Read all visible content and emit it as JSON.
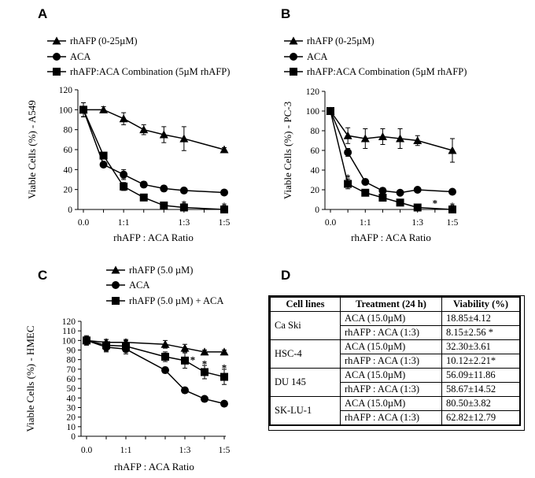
{
  "panels": {
    "A": "A",
    "B": "B",
    "C": "C",
    "D": "D"
  },
  "chart_data": [
    {
      "id": "A",
      "type": "line",
      "ylabel": "Viable Cells (%) - A549",
      "xlabel": "rhAFP : ACA Ratio",
      "ylim": [
        0,
        120
      ],
      "yticks": [
        0,
        20,
        40,
        60,
        80,
        100,
        120
      ],
      "x_positions": [
        0,
        1,
        2,
        3,
        4,
        5,
        6,
        7
      ],
      "xtick_labels": [
        {
          "x": 0,
          "label": "0.0"
        },
        {
          "x": 2,
          "label": "1:1"
        },
        {
          "x": 5,
          "label": "1:3"
        },
        {
          "x": 7,
          "label": "1:5"
        }
      ],
      "series": [
        {
          "name": "rhAFP (0-25µM)",
          "marker": "triangle",
          "values": [
            100,
            100,
            91,
            80,
            75,
            71,
            60
          ],
          "x": [
            0,
            1,
            2,
            3,
            4,
            5,
            7
          ],
          "err": [
            7,
            3,
            6,
            5,
            8,
            12,
            2
          ]
        },
        {
          "name": "ACA",
          "marker": "circle",
          "values": [
            100,
            45,
            35,
            25,
            21,
            19,
            17
          ],
          "x": [
            0,
            1,
            2,
            3,
            4,
            5,
            7
          ],
          "err": [
            7,
            2,
            5,
            3,
            3,
            2,
            2
          ]
        },
        {
          "name": "rhAFP:ACA Combination (5µM rhAFP)",
          "marker": "square",
          "values": [
            100,
            54,
            23,
            12,
            4,
            2,
            0
          ],
          "x": [
            0,
            1,
            2,
            3,
            4,
            5,
            7
          ],
          "err": [
            7,
            3,
            4,
            2,
            2,
            2,
            1
          ]
        }
      ],
      "stars": [
        {
          "x": 2,
          "y": 31
        },
        {
          "x": 5,
          "y": 6
        },
        {
          "x": 7,
          "y": 4
        }
      ]
    },
    {
      "id": "B",
      "type": "line",
      "ylabel": "Viable Cells (%) - PC-3",
      "xlabel": "rhAFP : ACA Ratio",
      "ylim": [
        0,
        120
      ],
      "yticks": [
        0,
        20,
        40,
        60,
        80,
        100,
        120
      ],
      "x_positions": [
        0,
        1,
        2,
        3,
        4,
        5,
        6,
        7
      ],
      "xtick_labels": [
        {
          "x": 0,
          "label": "0.0"
        },
        {
          "x": 2,
          "label": "1:1"
        },
        {
          "x": 5,
          "label": "1:3"
        },
        {
          "x": 7,
          "label": "1:5"
        }
      ],
      "series": [
        {
          "name": "rhAFP (0-25µM)",
          "marker": "triangle",
          "values": [
            100,
            75,
            72,
            74,
            72,
            70,
            60
          ],
          "x": [
            0,
            1,
            2,
            3,
            4,
            5,
            7
          ],
          "err": [
            3,
            8,
            10,
            8,
            10,
            5,
            12
          ]
        },
        {
          "name": "ACA",
          "marker": "circle",
          "values": [
            100,
            58,
            28,
            19,
            17,
            20,
            18
          ],
          "x": [
            0,
            1,
            2,
            3,
            4,
            5,
            7
          ],
          "err": [
            3,
            4,
            3,
            3,
            2,
            2,
            2
          ]
        },
        {
          "name": "rhAFP:ACA Combination (5µM rhAFP)",
          "marker": "square",
          "values": [
            100,
            26,
            17,
            12,
            7,
            2,
            0
          ],
          "x": [
            0,
            1,
            2,
            3,
            4,
            5,
            7
          ],
          "err": [
            3,
            5,
            2,
            3,
            2,
            2,
            1
          ]
        }
      ],
      "stars": [
        {
          "x": 1,
          "y": 33
        },
        {
          "x": 6,
          "y": 7
        },
        {
          "x": 7,
          "y": 4
        }
      ]
    },
    {
      "id": "C",
      "type": "line",
      "ylabel": "Viable Cells (%) - HMEC",
      "xlabel": "rhAFP : ACA Ratio",
      "ylim": [
        0,
        120
      ],
      "yticks": [
        0,
        10,
        20,
        30,
        40,
        50,
        60,
        70,
        80,
        90,
        100,
        110,
        120
      ],
      "x_positions": [
        0,
        1,
        2,
        3,
        4,
        5,
        6,
        7
      ],
      "xtick_labels": [
        {
          "x": 0,
          "label": "0.0"
        },
        {
          "x": 2,
          "label": "1:1"
        },
        {
          "x": 5,
          "label": "1:3"
        },
        {
          "x": 7,
          "label": "1:5"
        }
      ],
      "series": [
        {
          "name": "rhAFP (5.0 µM)",
          "marker": "triangle",
          "values": [
            100,
            98,
            98,
            96,
            92,
            88,
            88
          ],
          "x": [
            0,
            1,
            2,
            4,
            5,
            6,
            7
          ],
          "err": [
            4,
            3,
            3,
            4,
            4,
            2,
            2
          ]
        },
        {
          "name": "ACA",
          "marker": "circle",
          "values": [
            100,
            93,
            91,
            69,
            48,
            39,
            34
          ],
          "x": [
            0,
            1,
            2,
            4,
            5,
            6,
            7
          ],
          "err": [
            4,
            5,
            5,
            3,
            3,
            2,
            1
          ]
        },
        {
          "name": "rhAFP (5.0 µM) + ACA",
          "marker": "square",
          "values": [
            100,
            95,
            94,
            83,
            79,
            67,
            62
          ],
          "x": [
            0,
            1,
            2,
            4,
            5,
            6,
            7
          ],
          "err": [
            5,
            6,
            6,
            5,
            8,
            7,
            8
          ]
        }
      ],
      "stars": [
        {
          "x": 5.4,
          "y": 80
        },
        {
          "x": 6,
          "y": 76
        },
        {
          "x": 7,
          "y": 72
        }
      ]
    }
  ],
  "table": {
    "headers": [
      "Cell lines",
      "Treatment (24 h)",
      "Viability (%)"
    ],
    "groups": [
      {
        "line": "Ca Ski",
        "rows": [
          [
            "ACA (15.0µM)",
            "18.85±4.12"
          ],
          [
            "rhAFP : ACA (1:3)",
            "8.15±2.56 *"
          ]
        ]
      },
      {
        "line": "HSC-4",
        "rows": [
          [
            "ACA (15.0µM)",
            "32.30±3.61"
          ],
          [
            "rhAFP : ACA (1:3)",
            "10.12±2.21*"
          ]
        ]
      },
      {
        "line": "DU 145",
        "rows": [
          [
            "ACA (15.0µM)",
            "56.09±11.86"
          ],
          [
            "rhAFP : ACA (1:3)",
            "58.67±14.52"
          ]
        ]
      },
      {
        "line": "SK-LU-1",
        "rows": [
          [
            "ACA (15.0µM)",
            "80.50±3.82"
          ],
          [
            "rhAFP : ACA (1:3)",
            "62.82±12.79"
          ]
        ]
      }
    ]
  },
  "colors": {
    "ink": "#000000",
    "background": "#ffffff"
  }
}
